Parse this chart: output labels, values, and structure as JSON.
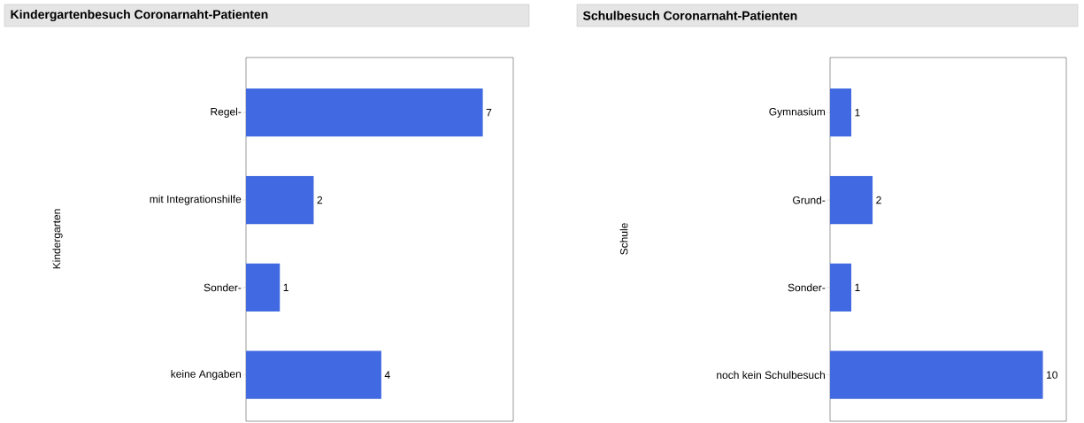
{
  "chart_data": [
    {
      "type": "bar",
      "orientation": "horizontal",
      "title": "Kindergartenbesuch Coronarnaht-Patienten",
      "ylabel": "Kindergarten",
      "categories": [
        "Regel-",
        "mit Integrationshilfe",
        "Sonder-",
        "keine Angaben"
      ],
      "values": [
        7,
        2,
        1,
        4
      ],
      "color": "#4169e1",
      "data_labels": true,
      "xlim": [
        0,
        7.9
      ],
      "tick_labels": "y"
    },
    {
      "type": "bar",
      "orientation": "horizontal",
      "title": "Schulbesuch Coronarnaht-Patienten",
      "ylabel": "Schule",
      "categories": [
        "Gymnasium",
        "Grund-",
        "Sonder-",
        "noch kein Schulbesuch"
      ],
      "values": [
        1,
        2,
        1,
        10
      ],
      "color": "#4169e1",
      "data_labels": true,
      "xlim": [
        0,
        11.1
      ],
      "tick_labels": "y"
    }
  ]
}
